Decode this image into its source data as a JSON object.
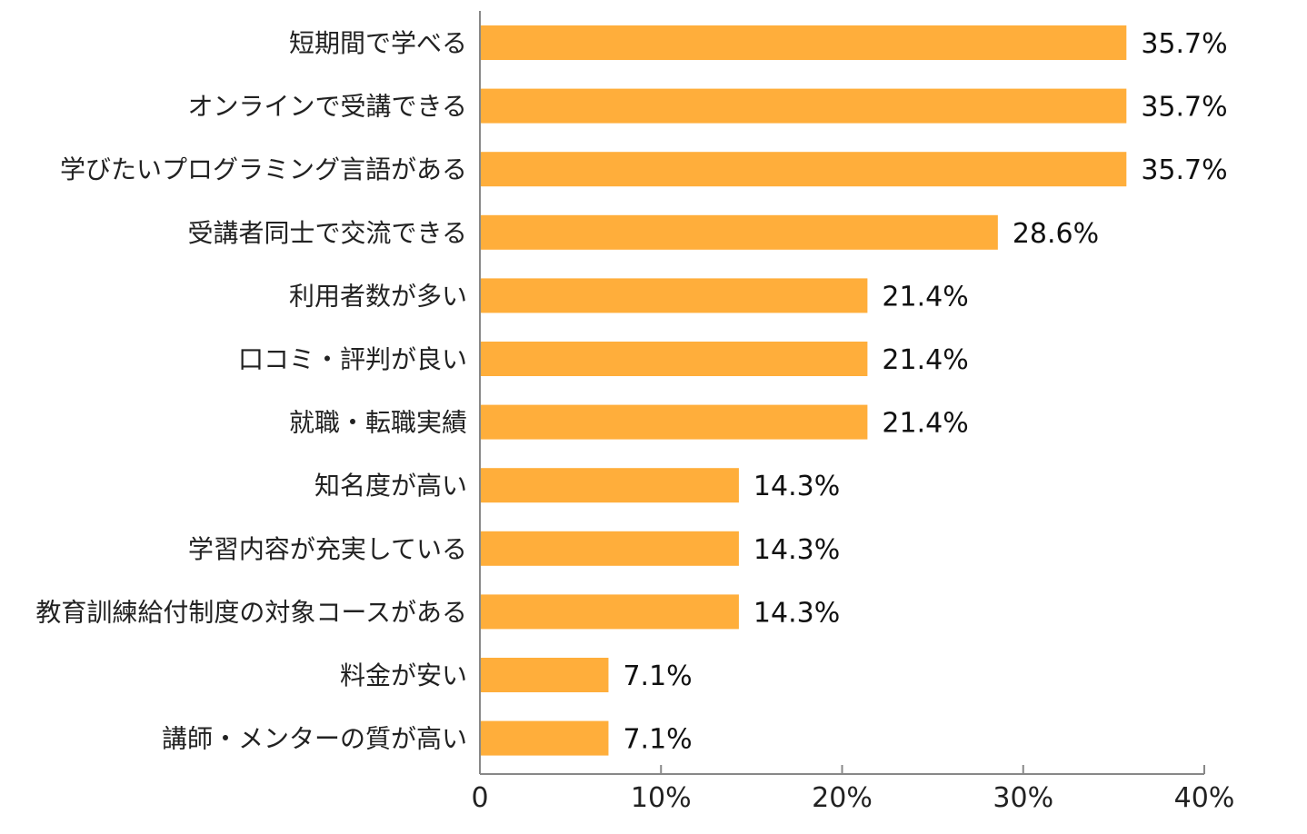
{
  "chart_data": {
    "type": "bar",
    "orientation": "horizontal",
    "categories": [
      "短期間で学べる",
      "オンラインで受講できる",
      "学びたいプログラミング言語がある",
      "受講者同士で交流できる",
      "利用者数が多い",
      "口コミ・評判が良い",
      "就職・転職実績",
      "知名度が高い",
      "学習内容が充実している",
      "教育訓練給付制度の対象コースがある",
      "料金が安い",
      "講師・メンターの質が高い"
    ],
    "values": [
      35.7,
      35.7,
      35.7,
      28.6,
      21.4,
      21.4,
      21.4,
      14.3,
      14.3,
      14.3,
      7.1,
      7.1
    ],
    "value_labels": [
      "35.7%",
      "35.7%",
      "35.7%",
      "28.6%",
      "21.4%",
      "21.4%",
      "21.4%",
      "14.3%",
      "14.3%",
      "14.3%",
      "7.1%",
      "7.1%"
    ],
    "xlim": [
      0,
      40
    ],
    "x_ticks": [
      0,
      10,
      20,
      30,
      40
    ],
    "x_tick_labels": [
      "0",
      "10%",
      "20%",
      "30%",
      "40%"
    ],
    "title": "",
    "xlabel": "",
    "ylabel": "",
    "grid": false,
    "legend": "none",
    "bar_color": "#FFAE3B",
    "axis_color": "#888888"
  }
}
